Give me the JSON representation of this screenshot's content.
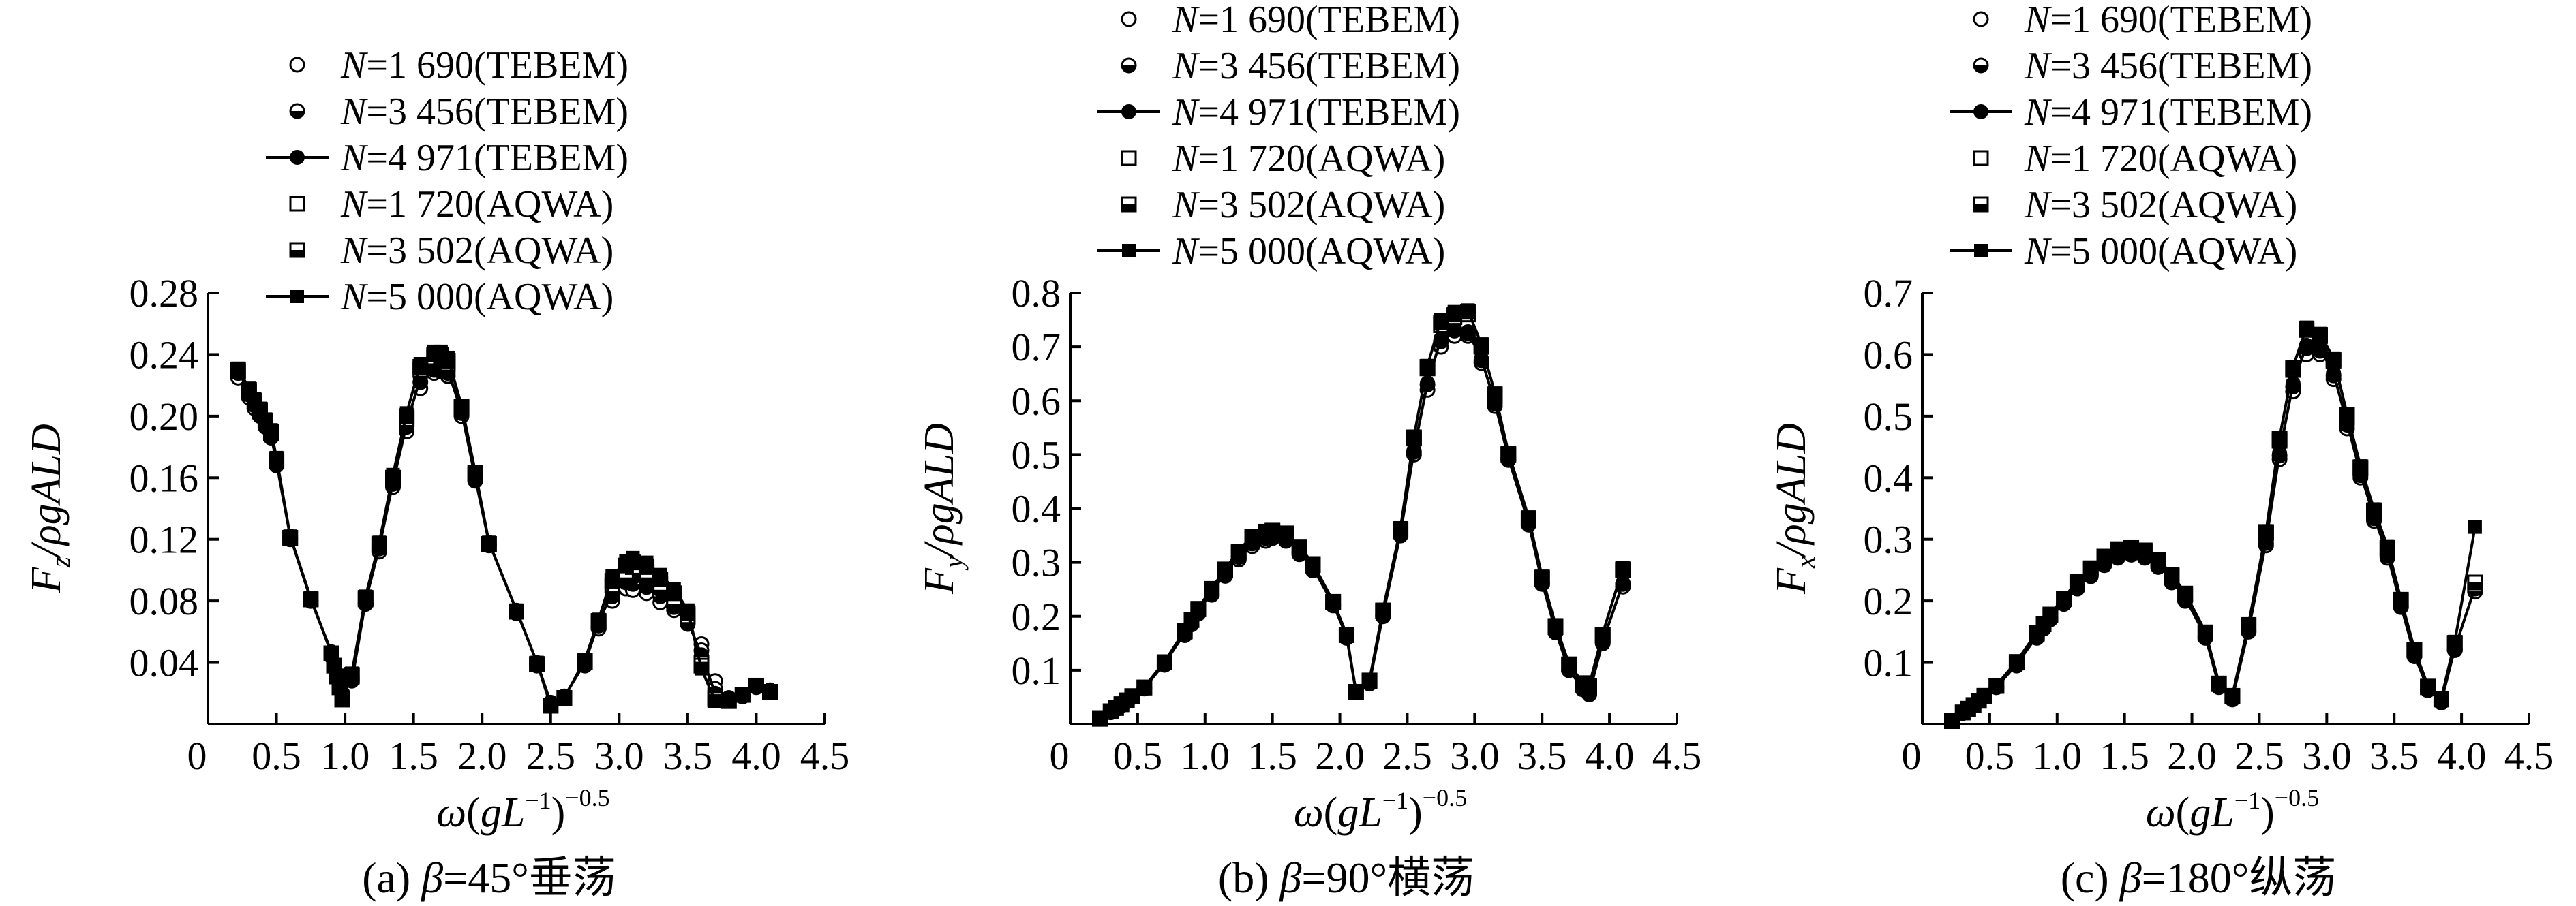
{
  "series_legend": [
    {
      "n": "N",
      "rest": "=1 690(TEBEM)"
    },
    {
      "n": "N",
      "rest": "=3 456(TEBEM)"
    },
    {
      "n": "N",
      "rest": "=4 971(TEBEM)"
    },
    {
      "n": "N",
      "rest": "=1 720(AQWA)"
    },
    {
      "n": "N",
      "rest": "=3 502(AQWA)"
    },
    {
      "n": "N",
      "rest": "=5 000(AQWA)"
    }
  ],
  "x_axis": {
    "symbol": "ω(gL",
    "exp1": "−1",
    "close": ")",
    "exp2": "−0.5",
    "ticks": [
      "0",
      "0.5",
      "1.0",
      "1.5",
      "2.0",
      "2.5",
      "3.0",
      "3.5",
      "4.0",
      "4.5"
    ]
  },
  "chart_data": [
    {
      "type": "line",
      "caption": {
        "prefix": "(a) ",
        "beta": "β",
        "rest": "=45°垂荡"
      },
      "ylabel": {
        "main": "F",
        "sub": "z",
        "rest": "/ρgALD"
      },
      "xlim": [
        0,
        4.5
      ],
      "ylim": [
        0,
        0.28
      ],
      "yticks": [
        "0.04",
        "0.08",
        "0.12",
        "0.16",
        "0.20",
        "0.24",
        "0.28"
      ],
      "x": [
        0.22,
        0.3,
        0.34,
        0.38,
        0.42,
        0.46,
        0.5,
        0.6,
        0.75,
        0.9,
        0.92,
        0.94,
        0.96,
        0.98,
        1.05,
        1.15,
        1.25,
        1.35,
        1.45,
        1.55,
        1.65,
        1.7,
        1.75,
        1.85,
        1.95,
        2.05,
        2.25,
        2.4,
        2.5,
        2.6,
        2.75,
        2.85,
        2.95,
        3.05,
        3.1,
        3.2,
        3.3,
        3.4,
        3.5,
        3.6,
        3.7,
        3.8,
        3.9,
        4.0,
        4.1
      ],
      "series": [
        {
          "name": "N=1 690(TEBEM)",
          "values": [
            0.225,
            0.212,
            0.205,
            0.2,
            0.193,
            0.186,
            0.168,
            0.12,
            0.08,
            0.044,
            0.037,
            0.031,
            0.025,
            0.019,
            0.03,
            0.078,
            0.112,
            0.154,
            0.19,
            0.218,
            0.228,
            0.229,
            0.226,
            0.2,
            0.158,
            0.116,
            0.072,
            0.038,
            0.013,
            0.017,
            0.038,
            0.062,
            0.08,
            0.088,
            0.087,
            0.085,
            0.079,
            0.074,
            0.065,
            0.052,
            0.028,
            0.017,
            0.018,
            0.024,
            0.022
          ]
        },
        {
          "name": "N=3 456(TEBEM)",
          "values": [
            0.228,
            0.214,
            0.207,
            0.201,
            0.194,
            0.187,
            0.169,
            0.121,
            0.08,
            0.046,
            0.038,
            0.032,
            0.026,
            0.02,
            0.029,
            0.079,
            0.114,
            0.156,
            0.193,
            0.222,
            0.23,
            0.23,
            0.228,
            0.202,
            0.159,
            0.117,
            0.073,
            0.039,
            0.014,
            0.018,
            0.039,
            0.064,
            0.083,
            0.092,
            0.091,
            0.089,
            0.083,
            0.076,
            0.066,
            0.048,
            0.023,
            0.017,
            0.018,
            0.025,
            0.022
          ]
        },
        {
          "name": "N=4 971(TEBEM)",
          "values": [
            0.23,
            0.215,
            0.208,
            0.202,
            0.195,
            0.188,
            0.17,
            0.122,
            0.081,
            0.047,
            0.039,
            0.032,
            0.026,
            0.02,
            0.028,
            0.08,
            0.115,
            0.157,
            0.195,
            0.225,
            0.232,
            0.231,
            0.23,
            0.203,
            0.16,
            0.118,
            0.074,
            0.04,
            0.014,
            0.018,
            0.04,
            0.066,
            0.086,
            0.095,
            0.095,
            0.093,
            0.087,
            0.079,
            0.067,
            0.045,
            0.02,
            0.017,
            0.018,
            0.025,
            0.022
          ]
        },
        {
          "name": "N=1 720(AQWA)",
          "values": [
            0.229,
            0.216,
            0.209,
            0.203,
            0.196,
            0.189,
            0.171,
            0.121,
            0.081,
            0.046,
            0.038,
            0.031,
            0.024,
            0.016,
            0.031,
            0.081,
            0.116,
            0.159,
            0.198,
            0.23,
            0.238,
            0.239,
            0.234,
            0.205,
            0.162,
            0.117,
            0.073,
            0.039,
            0.012,
            0.017,
            0.04,
            0.066,
            0.09,
            0.099,
            0.102,
            0.099,
            0.091,
            0.082,
            0.07,
            0.04,
            0.017,
            0.015,
            0.019,
            0.025,
            0.021
          ]
        },
        {
          "name": "N=3 502(AQWA)",
          "values": [
            0.23,
            0.217,
            0.21,
            0.204,
            0.197,
            0.19,
            0.172,
            0.121,
            0.081,
            0.046,
            0.038,
            0.031,
            0.024,
            0.016,
            0.032,
            0.082,
            0.117,
            0.16,
            0.2,
            0.232,
            0.24,
            0.24,
            0.236,
            0.206,
            0.163,
            0.117,
            0.073,
            0.039,
            0.012,
            0.017,
            0.041,
            0.067,
            0.093,
            0.103,
            0.105,
            0.102,
            0.094,
            0.085,
            0.072,
            0.038,
            0.016,
            0.015,
            0.019,
            0.025,
            0.021
          ]
        },
        {
          "name": "N=5 000(AQWA)",
          "values": [
            0.231,
            0.218,
            0.211,
            0.205,
            0.198,
            0.191,
            0.173,
            0.122,
            0.082,
            0.046,
            0.038,
            0.031,
            0.024,
            0.016,
            0.033,
            0.083,
            0.118,
            0.162,
            0.202,
            0.234,
            0.242,
            0.242,
            0.238,
            0.207,
            0.164,
            0.118,
            0.074,
            0.04,
            0.012,
            0.017,
            0.042,
            0.068,
            0.096,
            0.106,
            0.108,
            0.105,
            0.097,
            0.088,
            0.074,
            0.036,
            0.015,
            0.015,
            0.019,
            0.025,
            0.021
          ]
        }
      ]
    },
    {
      "type": "line",
      "caption": {
        "prefix": "(b) ",
        "beta": "β",
        "rest": "=90°横荡"
      },
      "ylabel": {
        "main": "F",
        "sub": "y",
        "rest": "/ρgALD"
      },
      "xlim": [
        0,
        4.5
      ],
      "ylim": [
        0,
        0.8
      ],
      "yticks": [
        "0.1",
        "0.2",
        "0.3",
        "0.4",
        "0.5",
        "0.6",
        "0.7",
        "0.8"
      ],
      "x": [
        0.22,
        0.3,
        0.34,
        0.38,
        0.42,
        0.46,
        0.55,
        0.7,
        0.85,
        0.9,
        0.95,
        1.05,
        1.15,
        1.25,
        1.35,
        1.45,
        1.5,
        1.6,
        1.7,
        1.8,
        1.95,
        2.05,
        2.12,
        2.22,
        2.32,
        2.45,
        2.55,
        2.65,
        2.75,
        2.85,
        2.95,
        3.05,
        3.15,
        3.25,
        3.4,
        3.5,
        3.6,
        3.7,
        3.8,
        3.85,
        3.95,
        4.1
      ],
      "series": [
        {
          "name": "N=1 690(TEBEM)",
          "values": [
            0.01,
            0.022,
            0.028,
            0.035,
            0.042,
            0.05,
            0.066,
            0.11,
            0.165,
            0.185,
            0.205,
            0.24,
            0.275,
            0.305,
            0.33,
            0.34,
            0.345,
            0.34,
            0.315,
            0.285,
            0.22,
            0.16,
            0.06,
            0.075,
            0.2,
            0.35,
            0.5,
            0.62,
            0.7,
            0.72,
            0.72,
            0.67,
            0.59,
            0.49,
            0.37,
            0.26,
            0.17,
            0.1,
            0.065,
            0.055,
            0.15,
            0.255
          ]
        },
        {
          "name": "N=3 456(TEBEM)",
          "values": [
            0.01,
            0.023,
            0.029,
            0.036,
            0.043,
            0.051,
            0.067,
            0.112,
            0.168,
            0.188,
            0.208,
            0.243,
            0.278,
            0.31,
            0.335,
            0.345,
            0.348,
            0.343,
            0.318,
            0.288,
            0.222,
            0.162,
            0.06,
            0.076,
            0.202,
            0.352,
            0.505,
            0.63,
            0.71,
            0.73,
            0.725,
            0.675,
            0.595,
            0.492,
            0.372,
            0.262,
            0.172,
            0.1,
            0.066,
            0.056,
            0.152,
            0.26
          ]
        },
        {
          "name": "N=4 971(TEBEM)",
          "values": [
            0.01,
            0.023,
            0.029,
            0.036,
            0.043,
            0.051,
            0.067,
            0.113,
            0.169,
            0.19,
            0.21,
            0.245,
            0.28,
            0.312,
            0.338,
            0.347,
            0.35,
            0.345,
            0.32,
            0.29,
            0.223,
            0.163,
            0.06,
            0.077,
            0.203,
            0.354,
            0.508,
            0.633,
            0.715,
            0.735,
            0.728,
            0.678,
            0.597,
            0.494,
            0.374,
            0.264,
            0.173,
            0.1,
            0.067,
            0.057,
            0.153,
            0.262
          ]
        },
        {
          "name": "N=1 720(AQWA)",
          "values": [
            0.01,
            0.024,
            0.03,
            0.037,
            0.044,
            0.052,
            0.068,
            0.115,
            0.172,
            0.193,
            0.213,
            0.25,
            0.285,
            0.318,
            0.345,
            0.355,
            0.357,
            0.352,
            0.327,
            0.295,
            0.226,
            0.165,
            0.06,
            0.08,
            0.21,
            0.36,
            0.53,
            0.66,
            0.74,
            0.755,
            0.76,
            0.7,
            0.61,
            0.5,
            0.38,
            0.27,
            0.18,
            0.11,
            0.075,
            0.07,
            0.165,
            0.285
          ]
        },
        {
          "name": "N=3 502(AQWA)",
          "values": [
            0.01,
            0.024,
            0.03,
            0.037,
            0.044,
            0.052,
            0.068,
            0.115,
            0.173,
            0.194,
            0.214,
            0.251,
            0.287,
            0.32,
            0.347,
            0.357,
            0.359,
            0.354,
            0.329,
            0.297,
            0.227,
            0.166,
            0.06,
            0.081,
            0.211,
            0.362,
            0.532,
            0.663,
            0.745,
            0.76,
            0.765,
            0.703,
            0.612,
            0.502,
            0.382,
            0.272,
            0.182,
            0.111,
            0.076,
            0.071,
            0.166,
            0.287
          ]
        },
        {
          "name": "N=5 000(AQWA)",
          "values": [
            0.01,
            0.025,
            0.031,
            0.038,
            0.045,
            0.053,
            0.069,
            0.116,
            0.174,
            0.195,
            0.215,
            0.252,
            0.288,
            0.322,
            0.349,
            0.359,
            0.36,
            0.355,
            0.33,
            0.298,
            0.228,
            0.167,
            0.06,
            0.082,
            0.212,
            0.364,
            0.534,
            0.665,
            0.75,
            0.765,
            0.768,
            0.705,
            0.614,
            0.504,
            0.384,
            0.274,
            0.184,
            0.112,
            0.077,
            0.072,
            0.168,
            0.29
          ]
        }
      ]
    },
    {
      "type": "line",
      "caption": {
        "prefix": "(c) ",
        "beta": "β",
        "rest": "=180°纵荡"
      },
      "ylabel": {
        "main": "F",
        "sub": "x",
        "rest": "/ρgALD"
      },
      "xlim": [
        0,
        4.5
      ],
      "ylim": [
        0,
        0.7
      ],
      "yticks": [
        "0.1",
        "0.2",
        "0.3",
        "0.4",
        "0.5",
        "0.6",
        "0.7"
      ],
      "x": [
        0.22,
        0.3,
        0.34,
        0.38,
        0.42,
        0.46,
        0.55,
        0.7,
        0.85,
        0.9,
        0.95,
        1.05,
        1.15,
        1.25,
        1.35,
        1.45,
        1.55,
        1.65,
        1.75,
        1.85,
        1.95,
        2.1,
        2.2,
        2.3,
        2.42,
        2.55,
        2.65,
        2.75,
        2.85,
        2.95,
        3.05,
        3.15,
        3.25,
        3.35,
        3.45,
        3.55,
        3.65,
        3.75,
        3.85,
        3.95,
        4.1
      ],
      "series": [
        {
          "name": "N=1 690(TEBEM)",
          "values": [
            0.005,
            0.018,
            0.024,
            0.03,
            0.037,
            0.045,
            0.06,
            0.095,
            0.14,
            0.155,
            0.17,
            0.195,
            0.22,
            0.24,
            0.258,
            0.27,
            0.275,
            0.27,
            0.255,
            0.23,
            0.2,
            0.14,
            0.06,
            0.04,
            0.15,
            0.29,
            0.43,
            0.54,
            0.6,
            0.6,
            0.56,
            0.48,
            0.4,
            0.33,
            0.27,
            0.19,
            0.11,
            0.055,
            0.035,
            0.12,
            0.215
          ]
        },
        {
          "name": "N=3 456(TEBEM)",
          "values": [
            0.005,
            0.018,
            0.024,
            0.03,
            0.037,
            0.045,
            0.06,
            0.096,
            0.142,
            0.157,
            0.172,
            0.197,
            0.222,
            0.243,
            0.261,
            0.273,
            0.278,
            0.273,
            0.258,
            0.233,
            0.203,
            0.142,
            0.061,
            0.041,
            0.152,
            0.294,
            0.436,
            0.548,
            0.61,
            0.606,
            0.566,
            0.486,
            0.404,
            0.334,
            0.274,
            0.192,
            0.112,
            0.056,
            0.036,
            0.122,
            0.22
          ]
        },
        {
          "name": "N=4 971(TEBEM)",
          "values": [
            0.005,
            0.018,
            0.024,
            0.03,
            0.037,
            0.045,
            0.06,
            0.097,
            0.143,
            0.158,
            0.173,
            0.198,
            0.224,
            0.245,
            0.263,
            0.275,
            0.28,
            0.275,
            0.26,
            0.235,
            0.205,
            0.143,
            0.062,
            0.042,
            0.153,
            0.296,
            0.44,
            0.553,
            0.615,
            0.61,
            0.57,
            0.49,
            0.407,
            0.337,
            0.276,
            0.193,
            0.113,
            0.057,
            0.037,
            0.123,
            0.222
          ]
        },
        {
          "name": "N=1 720(AQWA)",
          "values": [
            0.005,
            0.019,
            0.025,
            0.031,
            0.038,
            0.046,
            0.062,
            0.1,
            0.147,
            0.162,
            0.177,
            0.203,
            0.23,
            0.252,
            0.27,
            0.282,
            0.285,
            0.28,
            0.265,
            0.24,
            0.21,
            0.148,
            0.065,
            0.045,
            0.16,
            0.31,
            0.46,
            0.575,
            0.64,
            0.63,
            0.59,
            0.5,
            0.415,
            0.345,
            0.285,
            0.2,
            0.12,
            0.06,
            0.04,
            0.13,
            0.225
          ]
        },
        {
          "name": "N=3 502(AQWA)",
          "values": [
            0.005,
            0.019,
            0.025,
            0.031,
            0.038,
            0.046,
            0.062,
            0.101,
            0.148,
            0.163,
            0.178,
            0.204,
            0.231,
            0.253,
            0.272,
            0.284,
            0.287,
            0.282,
            0.267,
            0.242,
            0.212,
            0.149,
            0.066,
            0.046,
            0.161,
            0.312,
            0.463,
            0.578,
            0.642,
            0.632,
            0.592,
            0.502,
            0.417,
            0.347,
            0.287,
            0.202,
            0.121,
            0.061,
            0.041,
            0.132,
            0.23
          ]
        },
        {
          "name": "N=5 000(AQWA)",
          "values": [
            0.005,
            0.02,
            0.026,
            0.032,
            0.039,
            0.047,
            0.063,
            0.102,
            0.149,
            0.164,
            0.179,
            0.205,
            0.232,
            0.254,
            0.273,
            0.285,
            0.288,
            0.283,
            0.268,
            0.243,
            0.213,
            0.15,
            0.067,
            0.047,
            0.162,
            0.313,
            0.465,
            0.58,
            0.644,
            0.634,
            0.594,
            0.504,
            0.419,
            0.349,
            0.289,
            0.203,
            0.122,
            0.062,
            0.042,
            0.134,
            0.32
          ]
        }
      ]
    }
  ]
}
